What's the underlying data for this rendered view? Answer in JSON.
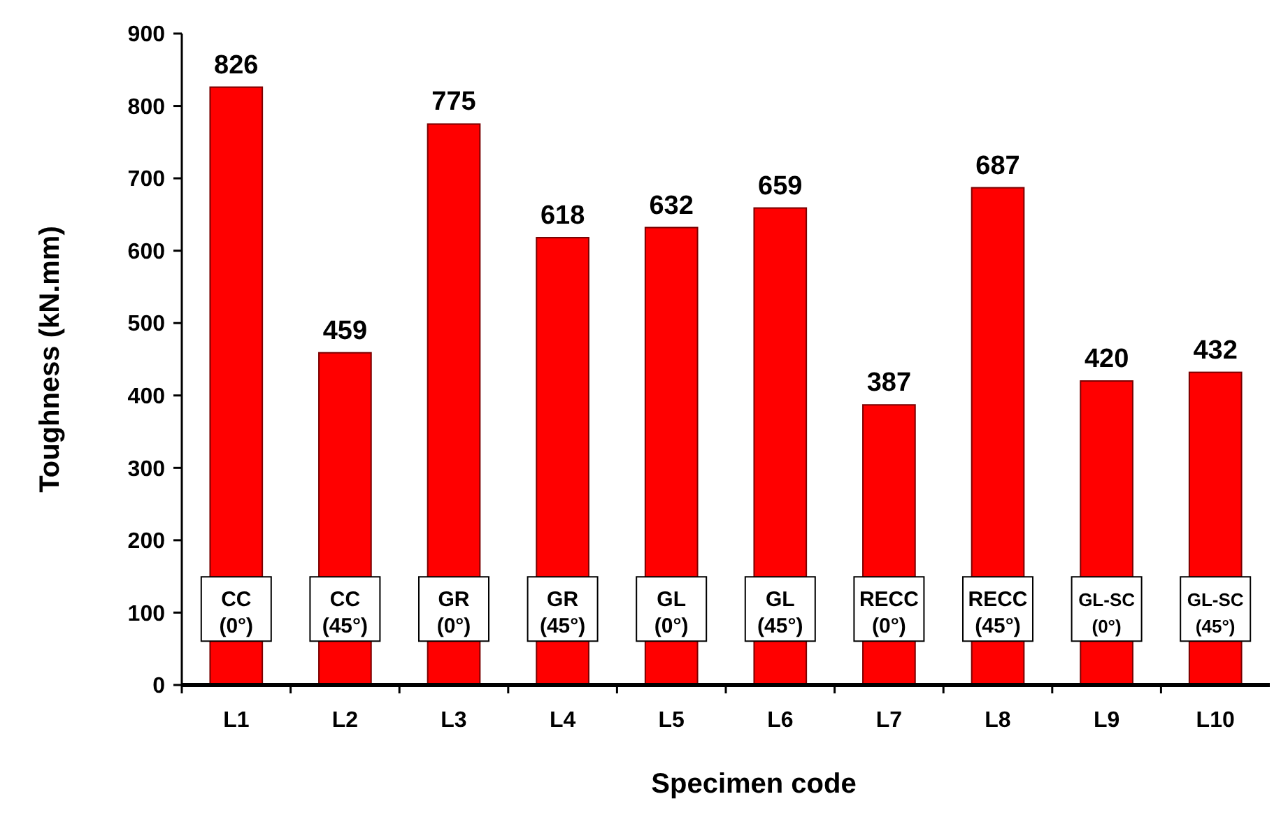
{
  "chart_data": {
    "type": "bar",
    "xlabel": "Specimen code",
    "ylabel": "Toughness (kN.mm)",
    "categories": [
      "L1",
      "L2",
      "L3",
      "L4",
      "L5",
      "L6",
      "L7",
      "L8",
      "L9",
      "L10"
    ],
    "values": [
      826,
      459,
      775,
      618,
      632,
      659,
      387,
      687,
      420,
      432
    ],
    "color": "#ff0000",
    "ylim": [
      0,
      900
    ],
    "yticks": [
      0,
      100,
      200,
      300,
      400,
      500,
      600,
      700,
      800,
      900
    ],
    "grid": false,
    "data_labels": true,
    "annotations": [
      "CC (0°)",
      "CC (45°)",
      "GR (0°)",
      "GR (45°)",
      "GL (0°)",
      "GL (45°)",
      "RECC (0°)",
      "RECC (45°)",
      "GL-SC (0°)",
      "GL-SC (45°)"
    ]
  }
}
